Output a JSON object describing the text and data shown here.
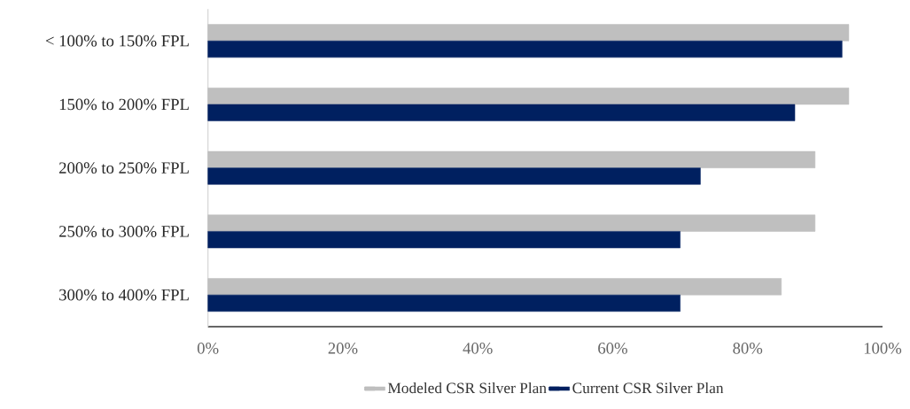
{
  "chart_data": {
    "type": "bar",
    "orientation": "horizontal",
    "categories": [
      "< 100% to 150% FPL",
      "150% to 200% FPL",
      "200% to 250% FPL",
      "250% to 300% FPL",
      "300% to 400% FPL"
    ],
    "series": [
      {
        "name": "Modeled CSR Silver Plan",
        "color": "#bfbfbf",
        "values": [
          95,
          95,
          90,
          90,
          85
        ]
      },
      {
        "name": "Current CSR Silver Plan",
        "color": "#002060",
        "values": [
          94,
          87,
          73,
          70,
          70
        ]
      }
    ],
    "xlim": [
      0,
      100
    ],
    "xticks": [
      {
        "value": 0,
        "label": "0%"
      },
      {
        "value": 20,
        "label": "20%"
      },
      {
        "value": 40,
        "label": "40%"
      },
      {
        "value": 60,
        "label": "60%"
      },
      {
        "value": 80,
        "label": "80%"
      },
      {
        "value": 100,
        "label": "100%"
      }
    ],
    "grid": false,
    "legend": "bottom"
  }
}
